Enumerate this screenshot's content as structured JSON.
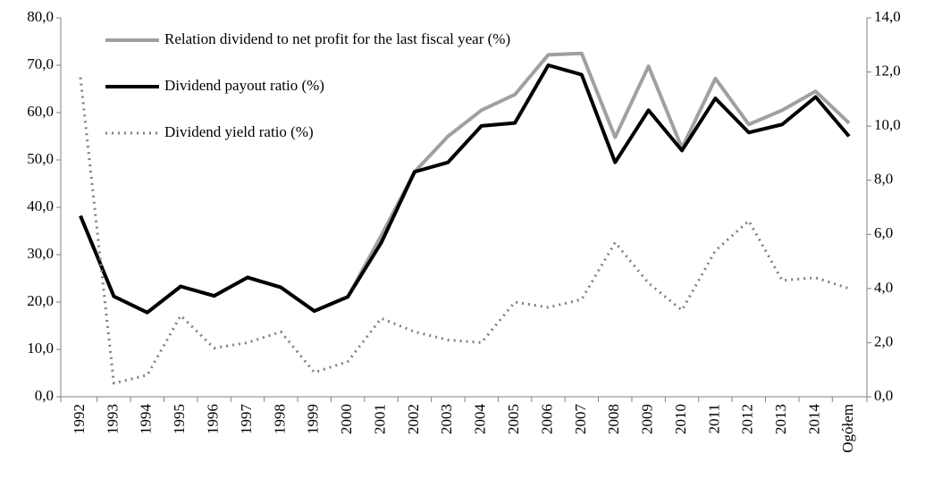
{
  "chart_data": {
    "type": "line",
    "categories": [
      "1992",
      "1993",
      "1994",
      "1995",
      "1996",
      "1997",
      "1998",
      "1999",
      "2000",
      "2001",
      "2002",
      "2003",
      "2004",
      "2005",
      "2006",
      "2007",
      "2008",
      "2009",
      "2010",
      "2011",
      "2012",
      "2013",
      "2014",
      "Ogółem"
    ],
    "series": [
      {
        "name": "Relation dividend to net profit for the last fiscal year (%)",
        "color": "#a0a0a0",
        "style": "solid",
        "values": [
          38.2,
          21.2,
          17.8,
          23.3,
          21.3,
          25.2,
          23.1,
          18.1,
          21.1,
          34,
          47.5,
          55,
          60.5,
          63.8,
          72.2,
          72.5,
          54.8,
          69.8,
          52.5,
          67.2,
          57.5,
          60.5,
          64.5,
          57.8
        ]
      },
      {
        "name": "Dividend payout ratio (%)",
        "color": "#000000",
        "style": "solid",
        "values": [
          38.2,
          21.2,
          17.8,
          23.3,
          21.3,
          25.2,
          23.1,
          18.1,
          21.1,
          32.5,
          47.5,
          49.5,
          57.2,
          57.8,
          70,
          68,
          49.5,
          60.5,
          52,
          63,
          55.8,
          57.5,
          63.3,
          55
        ]
      },
      {
        "name": "Dividend yield ratio  (%)",
        "color": "#808080",
        "style": "dotted",
        "axis": "y2",
        "values": [
          11.8,
          0.5,
          0.8,
          3.0,
          1.8,
          2.0,
          2.4,
          0.9,
          1.3,
          2.9,
          2.4,
          2.1,
          2.0,
          3.5,
          3.3,
          3.6,
          5.7,
          4.2,
          3.2,
          5.4,
          6.5,
          4.3,
          4.4,
          4.0
        ]
      }
    ],
    "ylim": [
      0,
      80
    ],
    "yticks": [
      {
        "value": 0,
        "label": "0,0"
      },
      {
        "value": 10,
        "label": "10,0"
      },
      {
        "value": 20,
        "label": "20,0"
      },
      {
        "value": 30,
        "label": "30,0"
      },
      {
        "value": 40,
        "label": "40,0"
      },
      {
        "value": 50,
        "label": "50,0"
      },
      {
        "value": 60,
        "label": "60,0"
      },
      {
        "value": 70,
        "label": "70,0"
      },
      {
        "value": 80,
        "label": "80,0"
      }
    ],
    "y2lim": [
      0,
      14
    ],
    "y2ticks": [
      {
        "value": 0,
        "label": "0,0"
      },
      {
        "value": 2,
        "label": "2,0"
      },
      {
        "value": 4,
        "label": "4,0"
      },
      {
        "value": 6,
        "label": "6,0"
      },
      {
        "value": 8,
        "label": "8,0"
      },
      {
        "value": 10,
        "label": "10,0"
      },
      {
        "value": 12,
        "label": "12,0"
      },
      {
        "value": 14,
        "label": "14,0"
      }
    ],
    "legend": "upper left",
    "grid": false
  }
}
